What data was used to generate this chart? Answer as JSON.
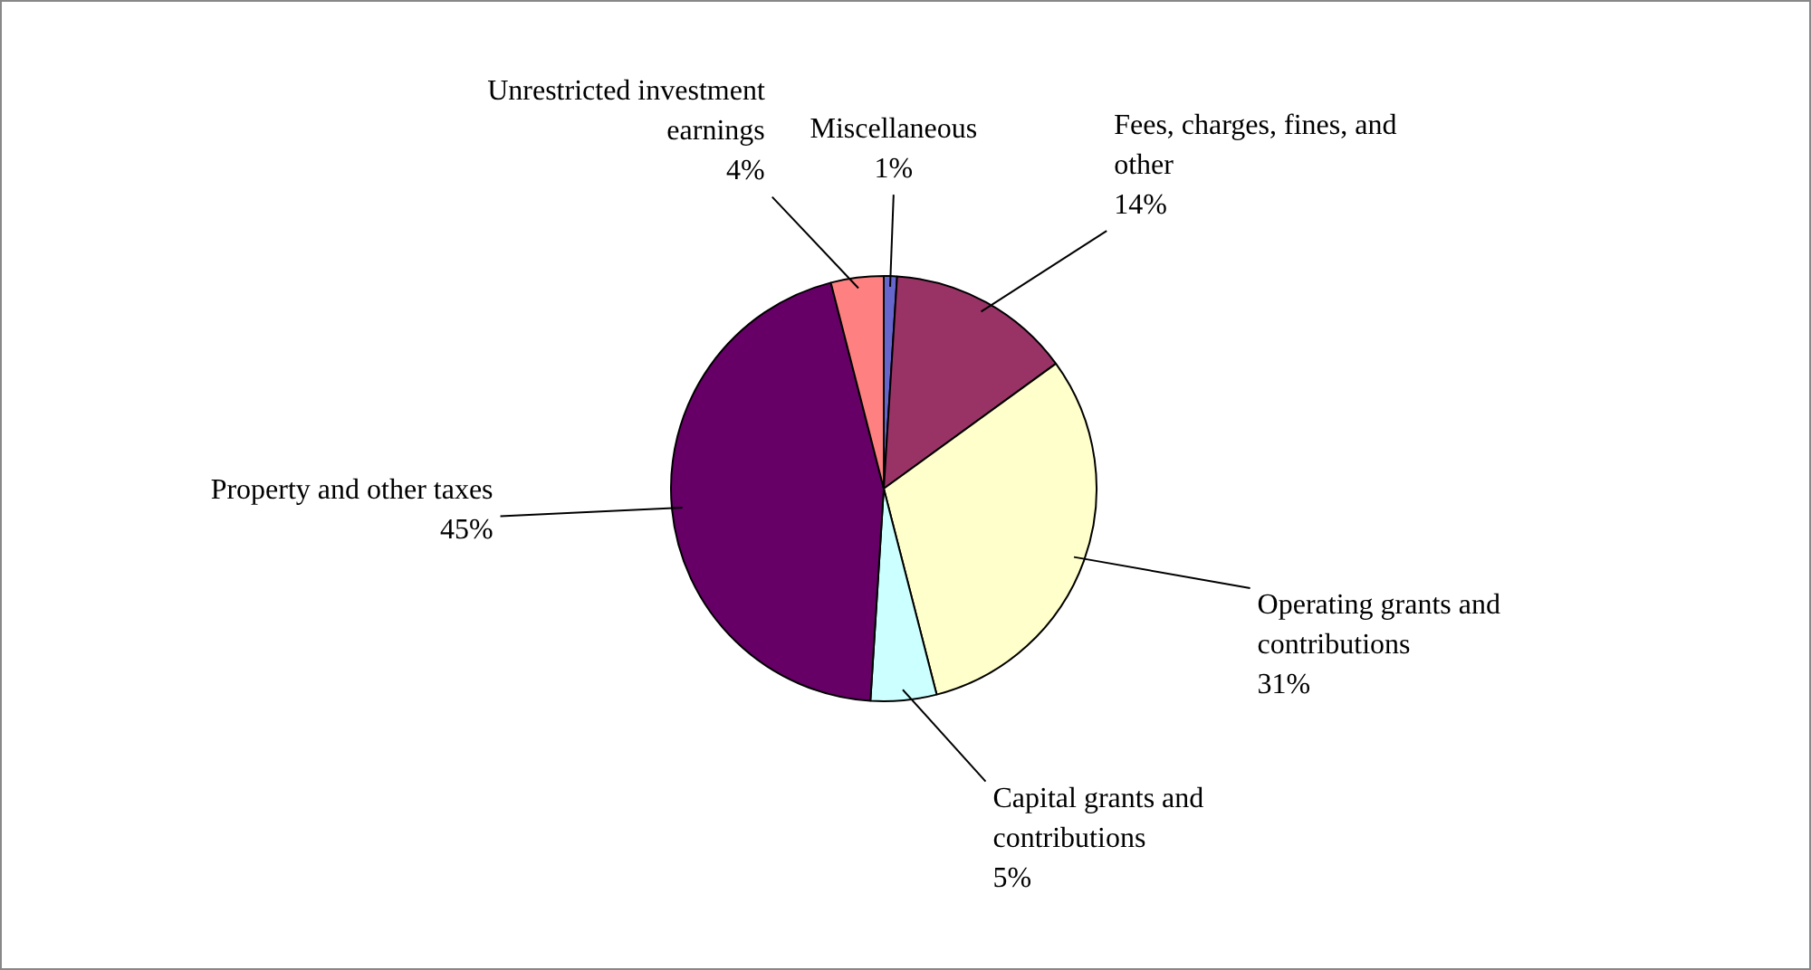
{
  "chart_data": {
    "type": "pie",
    "categories": [
      "Miscellaneous",
      "Fees, charges, fines, and other",
      "Operating grants and contributions",
      "Capital grants and contributions",
      "Property and other taxes",
      "Unrestricted investment earnings"
    ],
    "values": [
      1,
      14,
      31,
      5,
      45,
      4
    ],
    "value_labels": [
      "1%",
      "14%",
      "31%",
      "5%",
      "45%",
      "4%"
    ],
    "colors": [
      "#6666cc",
      "#993366",
      "#ffffcc",
      "#ccffff",
      "#660066",
      "#ff8080"
    ],
    "legend": false
  }
}
